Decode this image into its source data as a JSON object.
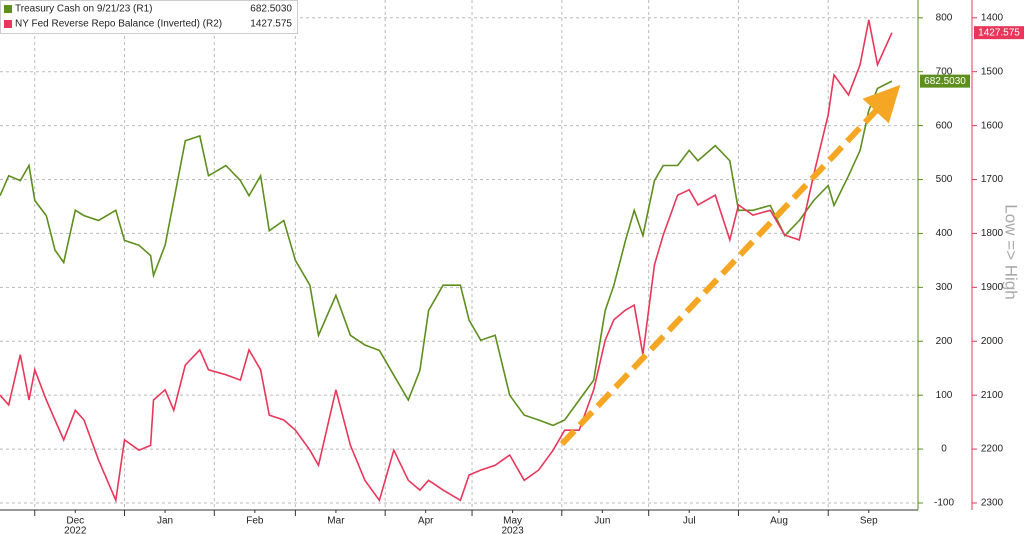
{
  "chart_data": {
    "type": "line",
    "x": [
      0,
      3,
      7,
      10,
      12,
      16,
      19,
      22,
      26,
      29,
      34,
      40,
      43,
      48,
      52,
      53,
      57,
      60,
      64,
      69,
      72,
      78,
      83,
      86,
      90,
      93,
      98,
      102,
      107,
      110,
      116,
      121,
      126,
      131,
      136,
      141,
      145,
      148,
      153,
      159,
      162,
      166,
      171,
      176,
      181,
      186,
      191,
      195,
      200,
      205,
      209,
      212,
      216,
      219,
      222,
      226,
      229,
      234,
      238,
      241,
      247,
      252,
      255,
      260,
      266,
      271,
      276,
      281,
      286,
      288,
      293,
      297,
      300,
      303,
      308
    ],
    "xlim": [
      0,
      317
    ],
    "xticks": [
      {
        "value": 26,
        "label": "Dec"
      },
      {
        "value": 57,
        "label": "Jan"
      },
      {
        "value": 88,
        "label": "Feb"
      },
      {
        "value": 116,
        "label": "Mar"
      },
      {
        "value": 147,
        "label": "Apr"
      },
      {
        "value": 177,
        "label": "May"
      },
      {
        "value": 208,
        "label": "Jun"
      },
      {
        "value": 238,
        "label": "Jul"
      },
      {
        "value": 269,
        "label": "Aug"
      },
      {
        "value": 300,
        "label": "Sep"
      }
    ],
    "xticks_minor": [
      12,
      43,
      74,
      102,
      133,
      163,
      194,
      224,
      255,
      286
    ],
    "year_labels": [
      {
        "value": 26,
        "label": "2022"
      },
      {
        "value": 177,
        "label": "2023"
      }
    ],
    "series": [
      {
        "name": "Treasury Cash on 9/21/23 (R1)",
        "color": "#5e8f1e",
        "value_labels": "682.5030",
        "values": [
          470,
          507,
          498,
          526,
          461,
          433,
          369,
          346,
          443,
          433,
          424,
          443,
          387,
          378,
          359,
          322,
          378,
          461,
          572,
          581,
          507,
          526,
          498,
          470,
          507,
          405,
          424,
          350,
          304,
          211,
          285,
          211,
          193,
          183,
          137,
          91,
          146,
          257,
          304,
          304,
          239,
          202,
          211,
          100,
          63,
          54,
          44,
          54,
          91,
          128,
          257,
          304,
          387,
          443,
          396,
          498,
          526,
          526,
          554,
          535,
          563,
          535,
          443,
          443,
          452,
          396,
          424,
          461,
          489,
          452,
          507,
          554,
          628,
          669,
          682.503
        ]
      },
      {
        "name": "NY Fed Reverse Repo Balance (Inverted) (R2)",
        "color": "#e8375a",
        "axis": "y2",
        "value_labels": "1427.575",
        "values": [
          2100,
          2118,
          2025,
          2109,
          2053,
          2109,
          2146,
          2183,
          2128,
          2146,
          2220,
          2295,
          2183,
          2202,
          2193,
          2109,
          2090,
          2128,
          2044,
          2016,
          2053,
          2062,
          2072,
          2016,
          2053,
          2137,
          2146,
          2165,
          2202,
          2230,
          2090,
          2193,
          2258,
          2295,
          2202,
          2258,
          2276,
          2258,
          2276,
          2295,
          2248,
          2239,
          2230,
          2211,
          2258,
          2239,
          2202,
          2165,
          2165,
          2090,
          1998,
          1960,
          1942,
          1933,
          2025,
          1858,
          1803,
          1729,
          1719,
          1747,
          1729,
          1812,
          1747,
          1766,
          1757,
          1803,
          1812,
          1691,
          1580,
          1506,
          1543,
          1487,
          1404,
          1487,
          1427.575
        ]
      }
    ],
    "ylim": [
      -113,
      833
    ],
    "yticks": [
      -100,
      0,
      100,
      200,
      300,
      400,
      500,
      600,
      700,
      800
    ],
    "y2lim": [
      1367,
      2313
    ],
    "y2_inverted": true,
    "y2ticks": [
      1400,
      1500,
      1600,
      1700,
      1800,
      1900,
      2000,
      2100,
      2200,
      2300
    ],
    "grid": true,
    "annotation": "Low => High"
  }
}
